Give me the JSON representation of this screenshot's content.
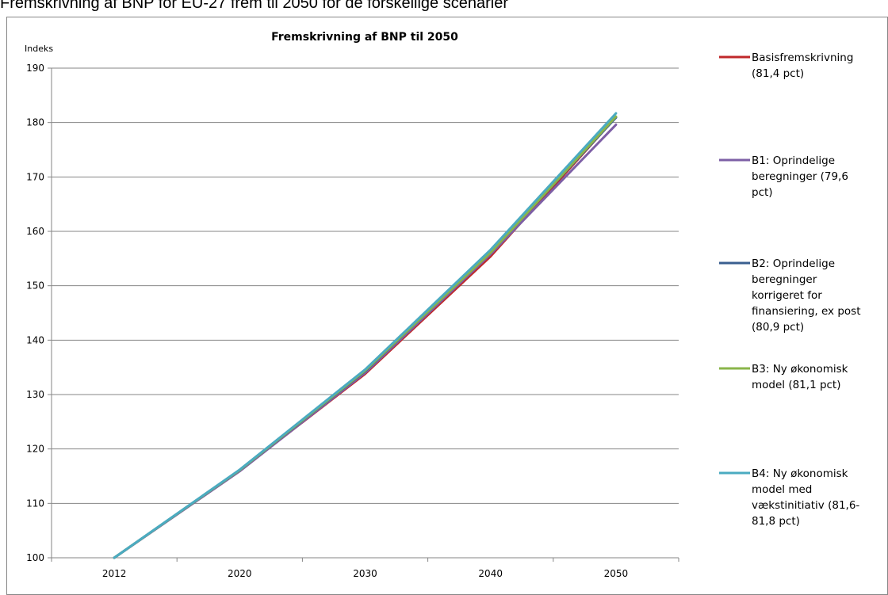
{
  "caption": "Fremskrivning af BNP for EU-27 frem til 2050 for de forskellige scenarier",
  "chart_data": {
    "type": "line",
    "title": "Fremskrivning af BNP til 2050",
    "ylabel": "Indeks",
    "xlabel": "",
    "categories": [
      "2012",
      "2020",
      "2030",
      "2040",
      "2050"
    ],
    "ylim": [
      100,
      190
    ],
    "yticks": [
      100,
      110,
      120,
      130,
      140,
      150,
      160,
      170,
      180,
      190
    ],
    "grid": true,
    "legend_position": "right",
    "series": [
      {
        "name": "Basisfremskrivning (81,4 pct)",
        "color": "#c0282a",
        "values": [
          100,
          116.0,
          133.8,
          155.4,
          181.0
        ]
      },
      {
        "name": "B1: Oprindelige beregninger (79,6 pct)",
        "color": "#7d5fa6",
        "values": [
          100,
          115.9,
          134.0,
          155.8,
          179.6
        ]
      },
      {
        "name": "B2: Oprindelige beregninger korrigeret for finansiering, ex post (80,9 pct)",
        "color": "#3a5f8f",
        "values": [
          100,
          116.1,
          134.3,
          156.2,
          180.9
        ]
      },
      {
        "name": "B3: Ny økonomisk model (81,1 pct)",
        "color": "#8ab54a",
        "values": [
          100,
          116.1,
          134.4,
          156.1,
          181.1
        ]
      },
      {
        "name": "B4: Ny økonomisk model med vækstinitiativ (81,6-81,8 pct)",
        "color": "#4babc1",
        "values": [
          100,
          116.2,
          134.6,
          156.6,
          181.7
        ]
      }
    ],
    "legend_lines": [
      [
        "Basisfremskrivning",
        "(81,4 pct)"
      ],
      [
        "B1: Oprindelige",
        "beregninger (79,6",
        "pct)"
      ],
      [
        "B2: Oprindelige",
        "beregninger",
        "korrigeret for",
        "finansiering, ex post",
        "(80,9 pct)"
      ],
      [
        "B3: Ny økonomisk",
        "model (81,1 pct)"
      ],
      [
        "B4: Ny økonomisk",
        "model med",
        "vækstinitiativ (81,6-",
        "81,8 pct)"
      ]
    ]
  }
}
